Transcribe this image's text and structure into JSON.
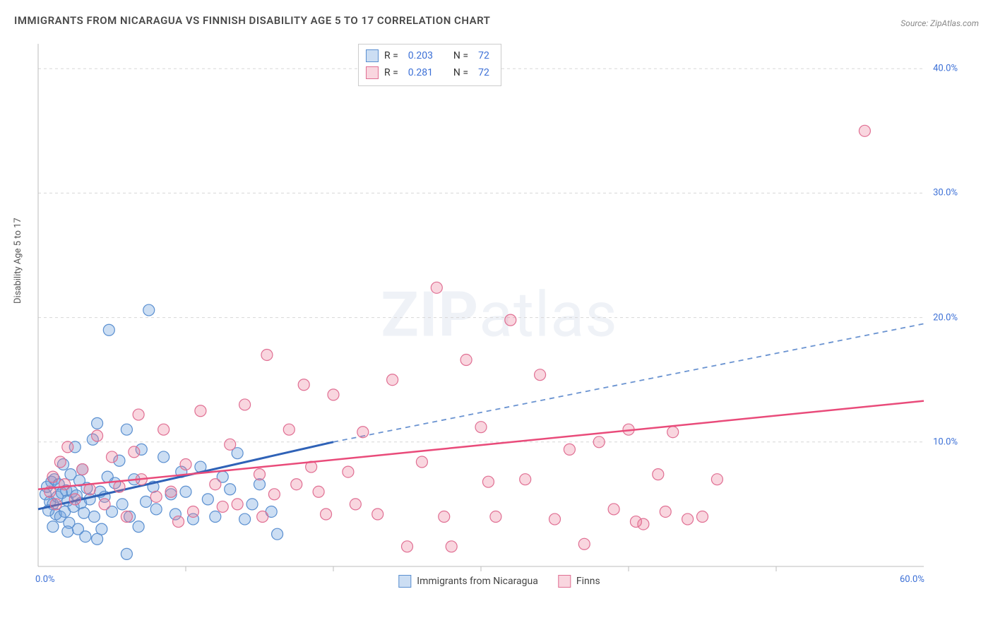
{
  "title": "IMMIGRANTS FROM NICARAGUA VS FINNISH DISABILITY AGE 5 TO 17 CORRELATION CHART",
  "source_label": "Source:",
  "source_name": "ZipAtlas.com",
  "y_axis_label": "Disability Age 5 to 17",
  "watermark_bold": "ZIP",
  "watermark_light": "atlas",
  "chart": {
    "type": "scatter",
    "xlim": [
      0,
      60
    ],
    "ylim": [
      0,
      42
    ],
    "y_ticks": [
      10,
      20,
      30,
      40
    ],
    "y_tick_labels": [
      "10.0%",
      "20.0%",
      "30.0%",
      "40.0%"
    ],
    "x_min_label": "0.0%",
    "x_max_label": "60.0%",
    "x_ticks": [
      10,
      20,
      30,
      40,
      50
    ],
    "grid_color": "#d7d7d7",
    "axis_color": "#bcbcbc",
    "background": "#ffffff",
    "series": [
      {
        "name": "Immigrants from Nicaragua",
        "fill": "rgba(108,160,220,0.35)",
        "stroke": "#5a8fd0",
        "line_color": "#2f62b7",
        "dash_color": "#6a93d1",
        "r_label": "R =",
        "r_value": "0.203",
        "n_label": "N =",
        "n_value": "72",
        "trend": {
          "x1": 0,
          "y1": 4.6,
          "x2": 20,
          "y2": 10.0,
          "x2_ext": 60,
          "y2_ext": 19.5
        },
        "marker_r": 8,
        "points": [
          [
            0.5,
            5.8
          ],
          [
            0.6,
            6.4
          ],
          [
            0.8,
            5.2
          ],
          [
            0.9,
            6.8
          ],
          [
            1.0,
            5.0
          ],
          [
            1.1,
            7.0
          ],
          [
            1.2,
            4.2
          ],
          [
            1.3,
            5.6
          ],
          [
            1.4,
            6.6
          ],
          [
            1.5,
            4.0
          ],
          [
            1.6,
            5.9
          ],
          [
            1.7,
            8.2
          ],
          [
            1.8,
            4.4
          ],
          [
            1.9,
            6.1
          ],
          [
            2.0,
            5.3
          ],
          [
            2.1,
            3.5
          ],
          [
            2.2,
            7.4
          ],
          [
            2.3,
            6.0
          ],
          [
            2.4,
            4.8
          ],
          [
            2.5,
            9.6
          ],
          [
            2.6,
            5.7
          ],
          [
            2.7,
            3.0
          ],
          [
            2.8,
            6.9
          ],
          [
            2.9,
            5.1
          ],
          [
            3.0,
            7.8
          ],
          [
            3.1,
            4.3
          ],
          [
            3.3,
            6.3
          ],
          [
            3.5,
            5.4
          ],
          [
            3.7,
            10.2
          ],
          [
            3.8,
            4.0
          ],
          [
            4.0,
            11.5
          ],
          [
            4.2,
            6.0
          ],
          [
            4.3,
            3.0
          ],
          [
            4.5,
            5.6
          ],
          [
            4.7,
            7.2
          ],
          [
            4.8,
            19.0
          ],
          [
            5.0,
            4.4
          ],
          [
            5.2,
            6.7
          ],
          [
            5.5,
            8.5
          ],
          [
            5.7,
            5.0
          ],
          [
            6.0,
            11.0
          ],
          [
            6.2,
            4.0
          ],
          [
            6.5,
            7.0
          ],
          [
            6.8,
            3.2
          ],
          [
            7.0,
            9.4
          ],
          [
            7.3,
            5.2
          ],
          [
            7.5,
            20.6
          ],
          [
            7.8,
            6.4
          ],
          [
            8.0,
            4.6
          ],
          [
            8.5,
            8.8
          ],
          [
            9.0,
            5.8
          ],
          [
            9.3,
            4.2
          ],
          [
            9.7,
            7.6
          ],
          [
            10.0,
            6.0
          ],
          [
            10.5,
            3.8
          ],
          [
            11.0,
            8.0
          ],
          [
            11.5,
            5.4
          ],
          [
            12.0,
            4.0
          ],
          [
            12.5,
            7.2
          ],
          [
            13.0,
            6.2
          ],
          [
            13.5,
            9.1
          ],
          [
            14.0,
            3.8
          ],
          [
            14.5,
            5.0
          ],
          [
            15.0,
            6.6
          ],
          [
            15.8,
            4.4
          ],
          [
            16.2,
            2.6
          ],
          [
            6.0,
            1.0
          ],
          [
            4.0,
            2.2
          ],
          [
            2.0,
            2.8
          ],
          [
            3.2,
            2.4
          ],
          [
            1.0,
            3.2
          ],
          [
            0.7,
            4.5
          ]
        ]
      },
      {
        "name": "Finns",
        "fill": "rgba(235,120,150,0.30)",
        "stroke": "#e06f93",
        "line_color": "#e94b7a",
        "r_label": "R =",
        "r_value": "0.281",
        "n_label": "N =",
        "n_value": "72",
        "trend": {
          "x1": 0,
          "y1": 6.2,
          "x2": 60,
          "y2": 13.3
        },
        "marker_r": 8,
        "points": [
          [
            0.8,
            6.0
          ],
          [
            1.0,
            7.2
          ],
          [
            1.2,
            5.0
          ],
          [
            1.5,
            8.4
          ],
          [
            1.8,
            6.6
          ],
          [
            2.0,
            9.6
          ],
          [
            2.5,
            5.4
          ],
          [
            3.0,
            7.8
          ],
          [
            3.5,
            6.2
          ],
          [
            4.0,
            10.5
          ],
          [
            4.5,
            5.0
          ],
          [
            5.0,
            8.8
          ],
          [
            5.5,
            6.4
          ],
          [
            6.0,
            4.0
          ],
          [
            6.5,
            9.2
          ],
          [
            7.0,
            7.0
          ],
          [
            8.0,
            5.6
          ],
          [
            8.5,
            11.0
          ],
          [
            9.0,
            6.0
          ],
          [
            10.0,
            8.2
          ],
          [
            10.5,
            4.4
          ],
          [
            11.0,
            12.5
          ],
          [
            12.0,
            6.6
          ],
          [
            13.0,
            9.8
          ],
          [
            13.5,
            5.0
          ],
          [
            14.0,
            13.0
          ],
          [
            15.0,
            7.4
          ],
          [
            15.5,
            17.0
          ],
          [
            16.0,
            5.8
          ],
          [
            17.0,
            11.0
          ],
          [
            18.0,
            14.6
          ],
          [
            18.5,
            8.0
          ],
          [
            19.0,
            6.0
          ],
          [
            20.0,
            13.8
          ],
          [
            21.0,
            7.6
          ],
          [
            22.0,
            10.8
          ],
          [
            23.0,
            4.2
          ],
          [
            24.0,
            15.0
          ],
          [
            25.0,
            1.6
          ],
          [
            26.0,
            8.4
          ],
          [
            27.0,
            22.4
          ],
          [
            28.0,
            1.6
          ],
          [
            29.0,
            16.6
          ],
          [
            30.0,
            11.2
          ],
          [
            31.0,
            4.0
          ],
          [
            32.0,
            19.8
          ],
          [
            33.0,
            7.0
          ],
          [
            34.0,
            15.4
          ],
          [
            35.0,
            3.8
          ],
          [
            36.0,
            9.4
          ],
          [
            37.0,
            1.8
          ],
          [
            38.0,
            10.0
          ],
          [
            39.0,
            4.6
          ],
          [
            40.0,
            11.0
          ],
          [
            41.0,
            3.4
          ],
          [
            42.0,
            7.4
          ],
          [
            43.0,
            10.8
          ],
          [
            44.0,
            3.8
          ],
          [
            45.0,
            4.0
          ],
          [
            46.0,
            7.0
          ],
          [
            40.5,
            3.6
          ],
          [
            42.5,
            4.4
          ],
          [
            56.0,
            35.0
          ],
          [
            27.5,
            4.0
          ],
          [
            30.5,
            6.8
          ],
          [
            15.2,
            4.0
          ],
          [
            17.5,
            6.6
          ],
          [
            19.5,
            4.2
          ],
          [
            21.5,
            5.0
          ],
          [
            12.5,
            4.8
          ],
          [
            9.5,
            3.6
          ],
          [
            6.8,
            12.2
          ]
        ]
      }
    ]
  },
  "bottom_legend": [
    {
      "label": "Immigrants from Nicaragua",
      "fill": "rgba(108,160,220,0.35)",
      "stroke": "#5a8fd0"
    },
    {
      "label": "Finns",
      "fill": "rgba(235,120,150,0.30)",
      "stroke": "#e06f93"
    }
  ]
}
